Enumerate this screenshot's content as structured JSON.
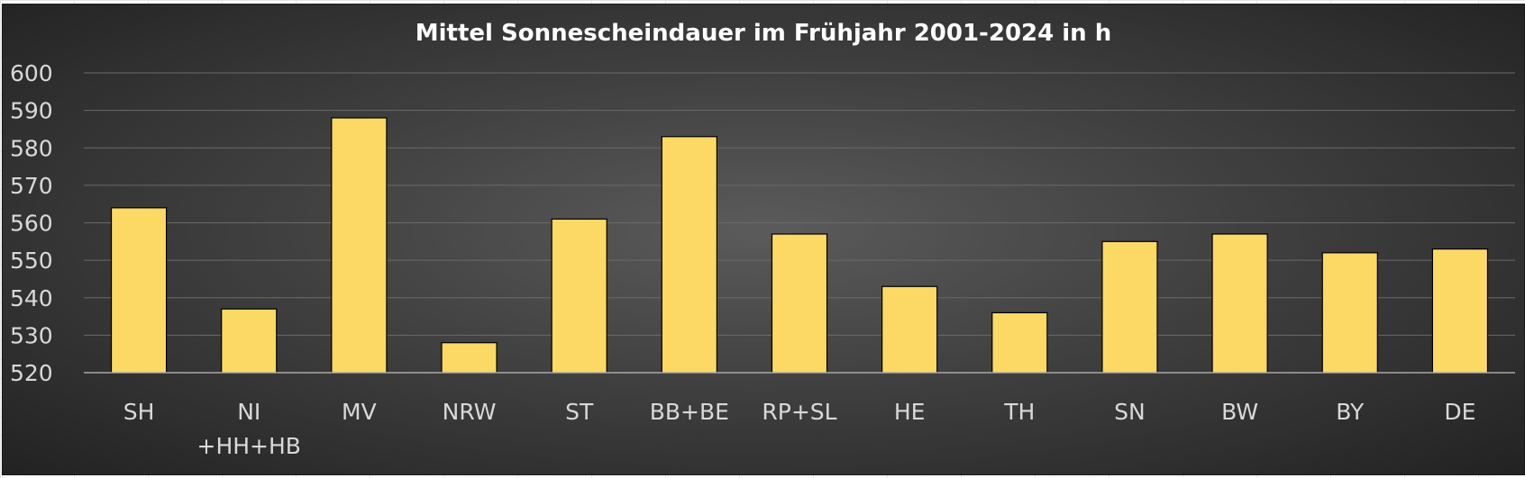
{
  "chart_data": {
    "type": "bar",
    "title": "Mittel Sonnescheindauer im Frühjahr 2001-2024 in h",
    "categories": [
      "SH",
      "NI\n+HH+HB",
      "MV",
      "NRW",
      "ST",
      "BB+BE",
      "RP+SL",
      "HE",
      "TH",
      "SN",
      "BW",
      "BY",
      "DE"
    ],
    "values": [
      564,
      537,
      588,
      528,
      561,
      583,
      557,
      543,
      536,
      555,
      557,
      552,
      553
    ],
    "ylim": [
      520,
      600
    ],
    "yticks": [
      520,
      530,
      540,
      550,
      560,
      570,
      580,
      590,
      600
    ],
    "xlabel": "",
    "ylabel": "",
    "grid": true,
    "colors": {
      "bar": "#fcd865",
      "bar_outline": "#000000",
      "background": "#484848",
      "text": "#d9d9d9",
      "title": "#ffffff"
    }
  }
}
